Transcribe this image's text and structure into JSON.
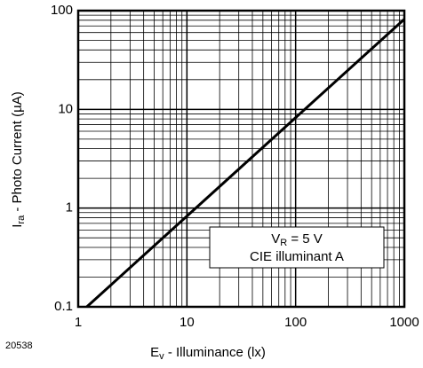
{
  "chart_data": {
    "type": "line",
    "log_x": true,
    "log_y": true,
    "grid": true,
    "figure_id": "20538",
    "x_label": {
      "main": "E",
      "sub": "v",
      "rest": " - Illuminance (lx)"
    },
    "y_label": {
      "main": "I",
      "sub": "ra",
      "rest": " - Photo Current (µA)"
    },
    "annotation": {
      "line1_main": "V",
      "line1_sub": "R",
      "line1_rest": " = 5 V",
      "line2": "CIE illuminant A"
    },
    "xlim": [
      1,
      1000
    ],
    "ylim": [
      0.1,
      100
    ],
    "xticks": [
      1,
      10,
      100,
      1000
    ],
    "yticks": [
      0.1,
      1,
      10,
      100
    ],
    "xminor": [
      2,
      3,
      4,
      5,
      6,
      7,
      8,
      9,
      20,
      30,
      40,
      50,
      60,
      70,
      80,
      90,
      200,
      300,
      400,
      500,
      600,
      700,
      800,
      900
    ],
    "yminor": [
      0.2,
      0.3,
      0.4,
      0.5,
      0.6,
      0.7,
      0.8,
      0.9,
      2,
      3,
      4,
      5,
      6,
      7,
      8,
      9,
      20,
      30,
      40,
      50,
      60,
      70,
      80,
      90
    ],
    "x": [
      1.2,
      1000
    ],
    "series": [
      {
        "color": "#000000",
        "values": [
          0.1,
          82
        ]
      }
    ]
  }
}
